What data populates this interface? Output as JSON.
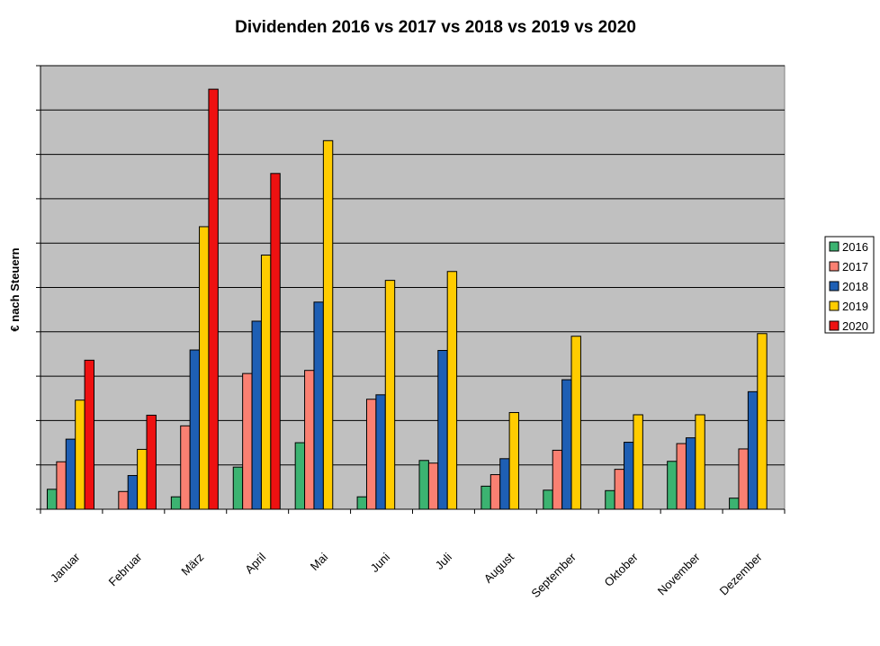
{
  "chart_data": {
    "type": "bar",
    "title": "Dividenden 2016 vs 2017 vs 2018 vs 2019 vs 2020",
    "xlabel": "",
    "ylabel": "€ nach Steuern",
    "ylim": [
      0,
      10
    ],
    "y_tick_labels_shown": false,
    "grid": true,
    "legend_position": "right",
    "categories": [
      "Januar",
      "Februar",
      "März",
      "April",
      "Mai",
      "Juni",
      "Juli",
      "August",
      "September",
      "Oktober",
      "November",
      "Dezember"
    ],
    "series": [
      {
        "name": "2016",
        "color": "#3cb371",
        "values": [
          0.45,
          0,
          0.28,
          0.95,
          1.5,
          0.28,
          1.1,
          0.52,
          0.43,
          0.42,
          1.08,
          0.25
        ]
      },
      {
        "name": "2017",
        "color": "#fa8072",
        "values": [
          1.07,
          0.4,
          1.88,
          3.06,
          3.13,
          2.48,
          1.04,
          0.78,
          1.33,
          0.9,
          1.48,
          1.36
        ]
      },
      {
        "name": "2018",
        "color": "#1e5fb4",
        "values": [
          1.58,
          0.76,
          3.59,
          4.24,
          4.67,
          2.58,
          3.58,
          1.14,
          2.92,
          1.51,
          1.61,
          2.65
        ]
      },
      {
        "name": "2019",
        "color": "#ffcc00",
        "values": [
          2.46,
          1.35,
          6.37,
          5.73,
          8.31,
          5.16,
          5.36,
          2.18,
          3.9,
          2.13,
          2.13,
          3.96
        ]
      },
      {
        "name": "2020",
        "color": "#ee1111",
        "values": [
          3.36,
          2.12,
          9.47,
          7.57,
          null,
          null,
          null,
          null,
          null,
          null,
          null,
          null
        ]
      }
    ]
  }
}
